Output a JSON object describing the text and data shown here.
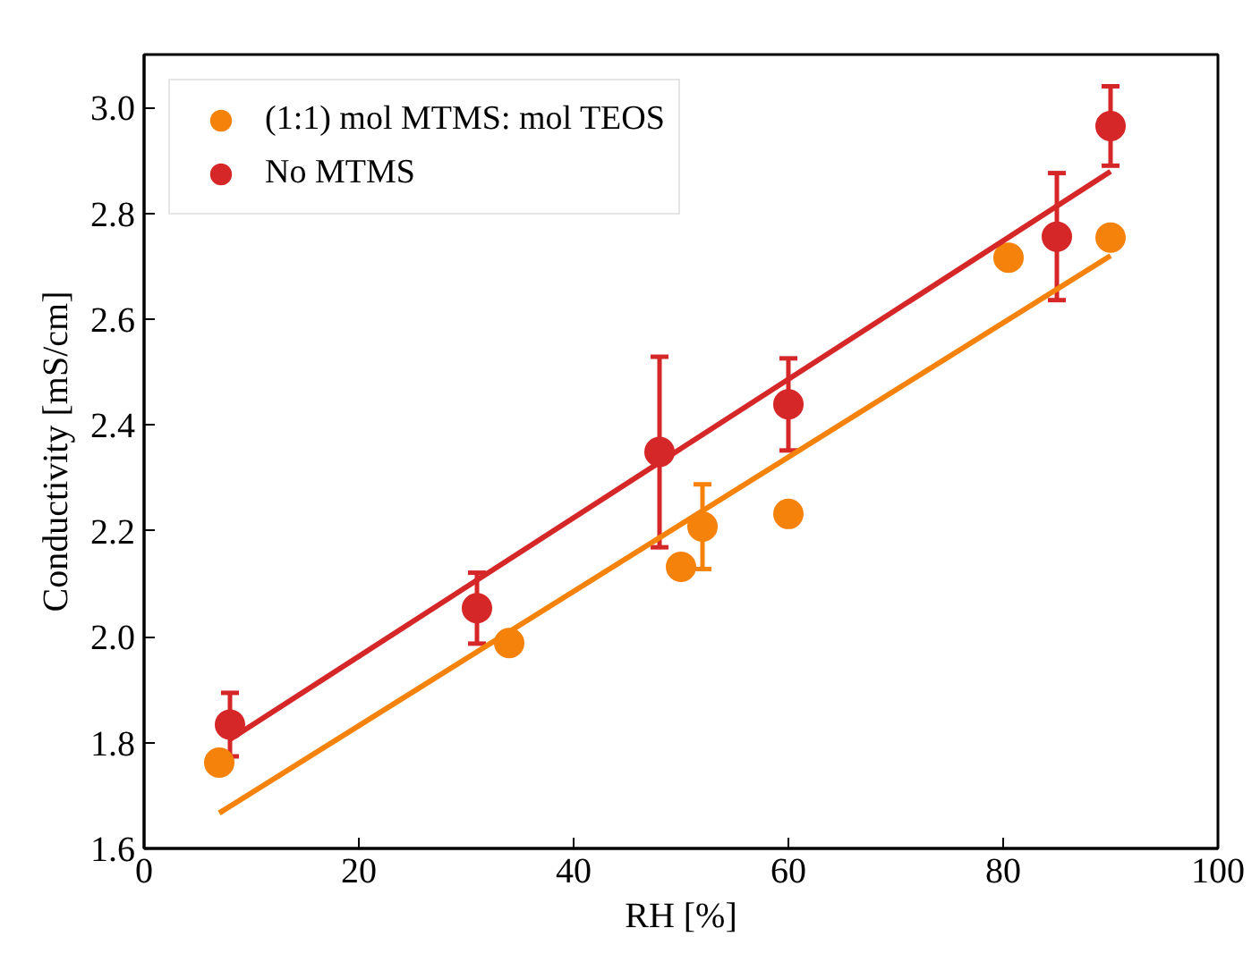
{
  "chart_data": {
    "type": "scatter",
    "xlabel": "RH [%]",
    "ylabel": "Conductivity [mS/cm]",
    "xlim": [
      0,
      100
    ],
    "ylim": [
      1.6,
      3.1
    ],
    "xticks": [
      0,
      20,
      40,
      60,
      80,
      100
    ],
    "yticks": [
      1.6,
      1.8,
      {
        "value": 2,
        "label": "2.0"
      },
      2.2,
      2.4,
      2.6,
      2.8,
      {
        "value": 3,
        "label": "3.0"
      }
    ],
    "grid": false,
    "legend": "top left",
    "marker": "circle",
    "series": [
      {
        "name": "(1:1) mol MTMS: mol TEOS",
        "color": "#f5820a",
        "x": [
          7,
          34,
          50,
          52,
          60,
          80.5,
          90
        ],
        "values": [
          1.762,
          1.988,
          2.132,
          2.208,
          2.232,
          2.716,
          2.754
        ],
        "errors": [
          null,
          null,
          null,
          0.08,
          null,
          null,
          null
        ]
      },
      {
        "name": "No MTMS",
        "color": "#d62728",
        "x": [
          8,
          31,
          48,
          60,
          85,
          90
        ],
        "values": [
          1.834,
          2.054,
          2.349,
          2.439,
          2.756,
          2.965
        ],
        "errors": [
          0.06,
          0.067,
          0.18,
          0.087,
          0.12,
          0.075
        ]
      },
      {
        "type": "line",
        "marker": "none",
        "color": "#d62728",
        "x": [
          8,
          90
        ],
        "values": [
          1.806,
          2.879
        ]
      },
      {
        "type": "line",
        "marker": "none",
        "color": "#f5820a",
        "x": [
          7,
          90
        ],
        "values": [
          1.667,
          2.72
        ]
      }
    ]
  }
}
